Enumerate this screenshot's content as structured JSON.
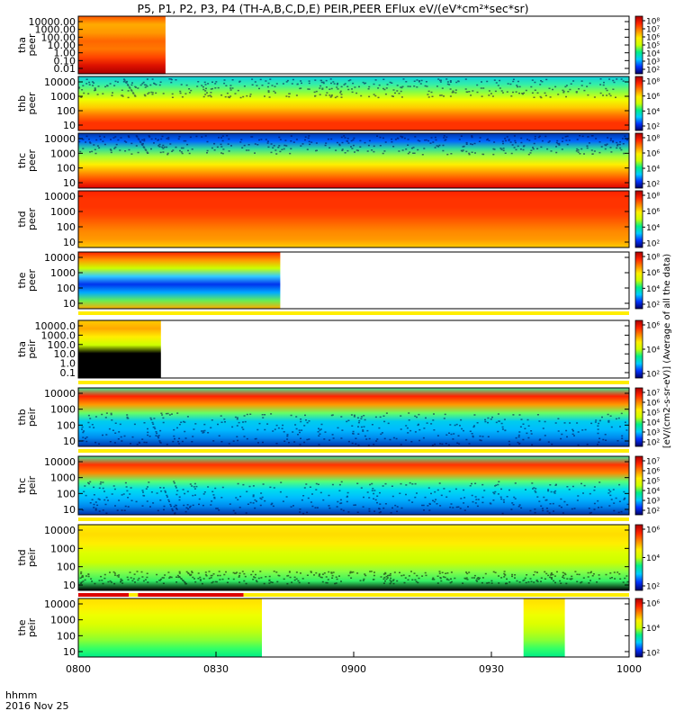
{
  "chart_data": {
    "type": "heatmap",
    "title": "P5, P1, P2, P3, P4 (TH-A,B,C,D,E) PEIR,PEER EFlux eV/(eV*cm²*sec*sr)",
    "x_ticks": [
      "0800",
      "0830",
      "0900",
      "0930",
      "1000"
    ],
    "x_range": [
      "0800",
      "1000"
    ],
    "x_corner_label": "hhmm",
    "date_label": "2016 Nov 25",
    "y_scale": "log",
    "colorbar_label": "[eV/(cm2-s-sr-eV)] (Average of all the data)",
    "colorbar_colors": [
      "#000066",
      "#0033ff",
      "#00ccff",
      "#00ee88",
      "#ccff00",
      "#ffee00",
      "#ff8800",
      "#ff2200",
      "#aa0000"
    ],
    "panels": [
      {
        "id": "tha-peer",
        "ylabel": [
          "tha",
          "peer"
        ],
        "yticks": [
          "10000.00",
          "1000.00",
          "100.00",
          "10.00",
          "1.00",
          "0.10",
          "0.01"
        ],
        "coverage": [
          [
            "0800",
            "0819"
          ]
        ],
        "cbar_ticks": [
          "10⁸",
          "10⁷",
          "10⁶",
          "10⁵",
          "10⁴",
          "10³",
          "10²"
        ],
        "bar": null
      },
      {
        "id": "thb-peer",
        "ylabel": [
          "thb",
          "peer"
        ],
        "yticks": [
          "10000",
          "1000",
          "100",
          "10"
        ],
        "coverage": [
          [
            "0800",
            "1000"
          ]
        ],
        "cbar_ticks": [
          "10⁸",
          "10⁶",
          "10⁴",
          "10²"
        ],
        "bar": null
      },
      {
        "id": "thc-peer",
        "ylabel": [
          "thc",
          "peer"
        ],
        "yticks": [
          "10000",
          "1000",
          "100",
          "10"
        ],
        "coverage": [
          [
            "0800",
            "1000"
          ]
        ],
        "cbar_ticks": [
          "10⁸",
          "10⁶",
          "10⁴",
          "10²"
        ],
        "bar": null
      },
      {
        "id": "thd-peer",
        "ylabel": [
          "thd",
          "peer"
        ],
        "yticks": [
          "10000",
          "1000",
          "100",
          "10"
        ],
        "coverage": [
          [
            "0800",
            "1000"
          ]
        ],
        "cbar_ticks": [
          "10⁸",
          "10⁶",
          "10⁴",
          "10²"
        ],
        "bar": null
      },
      {
        "id": "the-peer",
        "ylabel": [
          "the",
          "peer"
        ],
        "yticks": [
          "10000",
          "1000",
          "100",
          "10"
        ],
        "coverage": [
          [
            "0800",
            "0844"
          ]
        ],
        "cbar_ticks": [
          "10⁸",
          "10⁶",
          "10⁴",
          "10²"
        ],
        "bar": [
          [
            "0800",
            "1000",
            "#ffee00"
          ]
        ]
      },
      {
        "id": "tha-peir",
        "ylabel": [
          "tha",
          "peir"
        ],
        "yticks": [
          "10000.0",
          "1000.0",
          "100.0",
          "10.0",
          "1.0",
          "0.1"
        ],
        "coverage": [
          [
            "0800",
            "0818"
          ]
        ],
        "cbar_ticks": [
          "10⁶",
          "10⁴",
          "10²"
        ],
        "bar": [
          [
            "0800",
            "1000",
            "#ffee00"
          ]
        ]
      },
      {
        "id": "thb-peir",
        "ylabel": [
          "thb",
          "peir"
        ],
        "yticks": [
          "10000",
          "1000",
          "100",
          "10"
        ],
        "coverage": [
          [
            "0800",
            "1000"
          ]
        ],
        "cbar_ticks": [
          "10⁷",
          "10⁶",
          "10⁵",
          "10⁴",
          "10³",
          "10²"
        ],
        "bar": [
          [
            "0800",
            "1000",
            "#ffee00"
          ]
        ]
      },
      {
        "id": "thc-peir",
        "ylabel": [
          "thc",
          "peir"
        ],
        "yticks": [
          "10000",
          "1000",
          "100",
          "10"
        ],
        "coverage": [
          [
            "0800",
            "1000"
          ]
        ],
        "cbar_ticks": [
          "10⁷",
          "10⁶",
          "10⁵",
          "10⁴",
          "10³",
          "10²"
        ],
        "bar": [
          [
            "0800",
            "1000",
            "#ffee00"
          ]
        ]
      },
      {
        "id": "thd-peir",
        "ylabel": [
          "thd",
          "peir"
        ],
        "yticks": [
          "10000",
          "1000",
          "100",
          "10"
        ],
        "coverage": [
          [
            "0800",
            "1000"
          ]
        ],
        "cbar_ticks": [
          "10⁶",
          "10⁴",
          "10²"
        ],
        "bar": [
          [
            "0800",
            "0811",
            "#dd0000"
          ],
          [
            "0811",
            "0813",
            "#ffee00"
          ],
          [
            "0813",
            "0836",
            "#dd0000"
          ],
          [
            "0836",
            "1000",
            "#ffee00"
          ]
        ]
      },
      {
        "id": "the-peir",
        "ylabel": [
          "the",
          "peir"
        ],
        "yticks": [
          "10000",
          "1000",
          "100",
          "10"
        ],
        "coverage": [
          [
            "0800",
            "0840"
          ],
          [
            "0937",
            "0946"
          ]
        ],
        "cbar_ticks": [
          "10⁶",
          "10⁴",
          "10²"
        ],
        "bar": null
      }
    ]
  }
}
